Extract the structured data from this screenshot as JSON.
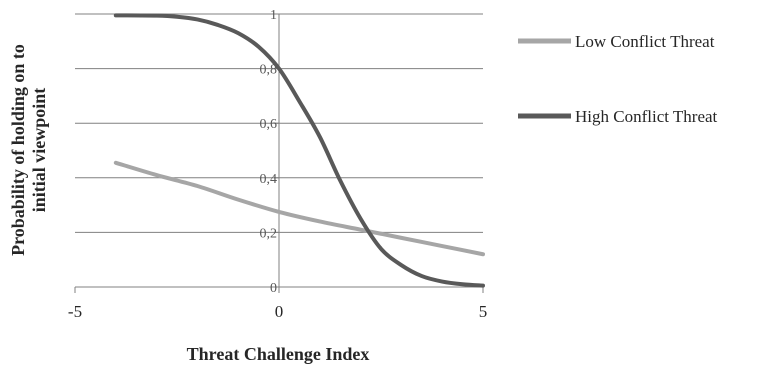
{
  "chart_data": {
    "type": "line",
    "title": "",
    "xlabel": "Threat Challenge Index",
    "ylabel_line1": "Probability of holding on to",
    "ylabel_line2": "initial viewpoint",
    "xlim": [
      -5,
      5
    ],
    "ylim": [
      0,
      1
    ],
    "x_ticks": [
      -5,
      0,
      5
    ],
    "x_tick_labels": [
      "-5",
      "0",
      "5"
    ],
    "y_ticks": [
      0,
      0.2,
      0.4,
      0.6,
      0.8,
      1
    ],
    "y_tick_labels": [
      "0",
      "0,2",
      "0,4",
      "0,6",
      "0,8",
      "1"
    ],
    "grid": "horizontal",
    "legend_position": "right",
    "series": [
      {
        "name": "Low Conflict Threat",
        "color": "#a6a6a6",
        "points": [
          [
            -4,
            0.455
          ],
          [
            -3,
            0.41
          ],
          [
            -2,
            0.37
          ],
          [
            -1,
            0.32
          ],
          [
            0,
            0.275
          ],
          [
            1,
            0.24
          ],
          [
            2,
            0.21
          ],
          [
            3,
            0.18
          ],
          [
            4,
            0.15
          ],
          [
            5,
            0.12
          ]
        ]
      },
      {
        "name": "High Conflict Threat",
        "color": "#595959",
        "points": [
          [
            -4,
            0.995
          ],
          [
            -3,
            0.994
          ],
          [
            -2.5,
            0.99
          ],
          [
            -2,
            0.98
          ],
          [
            -1.5,
            0.96
          ],
          [
            -1,
            0.93
          ],
          [
            -0.5,
            0.88
          ],
          [
            0,
            0.8
          ],
          [
            0.5,
            0.68
          ],
          [
            1,
            0.55
          ],
          [
            1.5,
            0.39
          ],
          [
            2,
            0.25
          ],
          [
            2.5,
            0.14
          ],
          [
            3,
            0.08
          ],
          [
            3.5,
            0.04
          ],
          [
            4,
            0.02
          ],
          [
            4.5,
            0.01
          ],
          [
            5,
            0.005
          ]
        ]
      }
    ]
  }
}
